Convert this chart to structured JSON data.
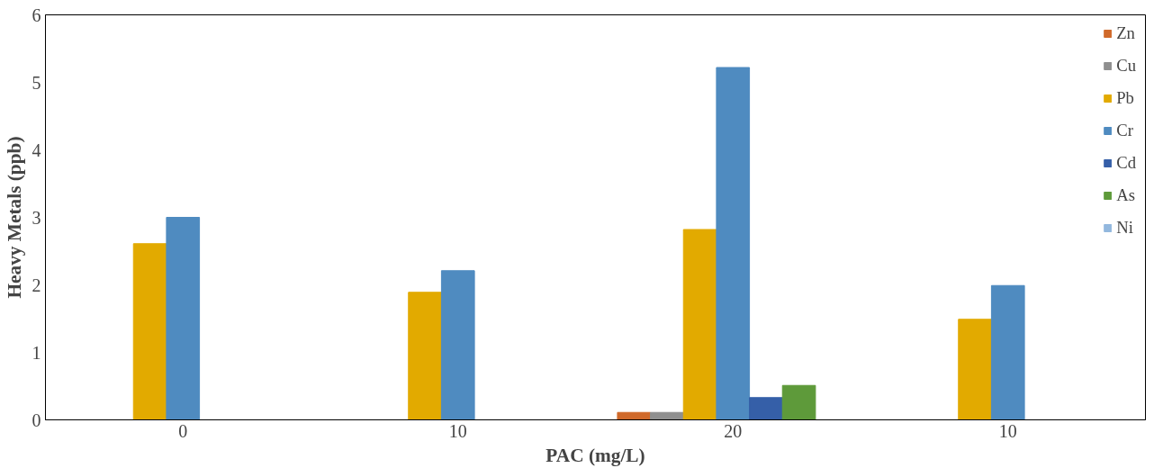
{
  "chart_data": {
    "type": "bar",
    "xlabel": "PAC (mg/L)",
    "ylabel": "Heavy Metals (ppb)",
    "categories": [
      "0",
      "10",
      "20",
      "10"
    ],
    "series": [
      {
        "name": "Zn",
        "color": "#d0692a",
        "values": [
          0,
          0,
          0.11,
          0
        ]
      },
      {
        "name": "Cu",
        "color": "#8f8f8f",
        "values": [
          0,
          0,
          0.11,
          0
        ]
      },
      {
        "name": "Pb",
        "color": "#e2aa00",
        "values": [
          2.61,
          1.89,
          2.82,
          1.49
        ]
      },
      {
        "name": "Cr",
        "color": "#4f8bc0",
        "values": [
          3.0,
          2.21,
          5.22,
          1.99
        ]
      },
      {
        "name": "Cd",
        "color": "#355fa8",
        "values": [
          0,
          0,
          0.33,
          0
        ]
      },
      {
        "name": "As",
        "color": "#5e9a3a",
        "values": [
          0,
          0,
          0.51,
          0
        ]
      },
      {
        "name": "Ni",
        "color": "#93b8de",
        "values": [
          0,
          0,
          0,
          0
        ]
      }
    ],
    "ylim": [
      0,
      6
    ],
    "yticks": [
      0,
      1,
      2,
      3,
      4,
      5,
      6
    ],
    "grid": false,
    "legend": "top right"
  }
}
